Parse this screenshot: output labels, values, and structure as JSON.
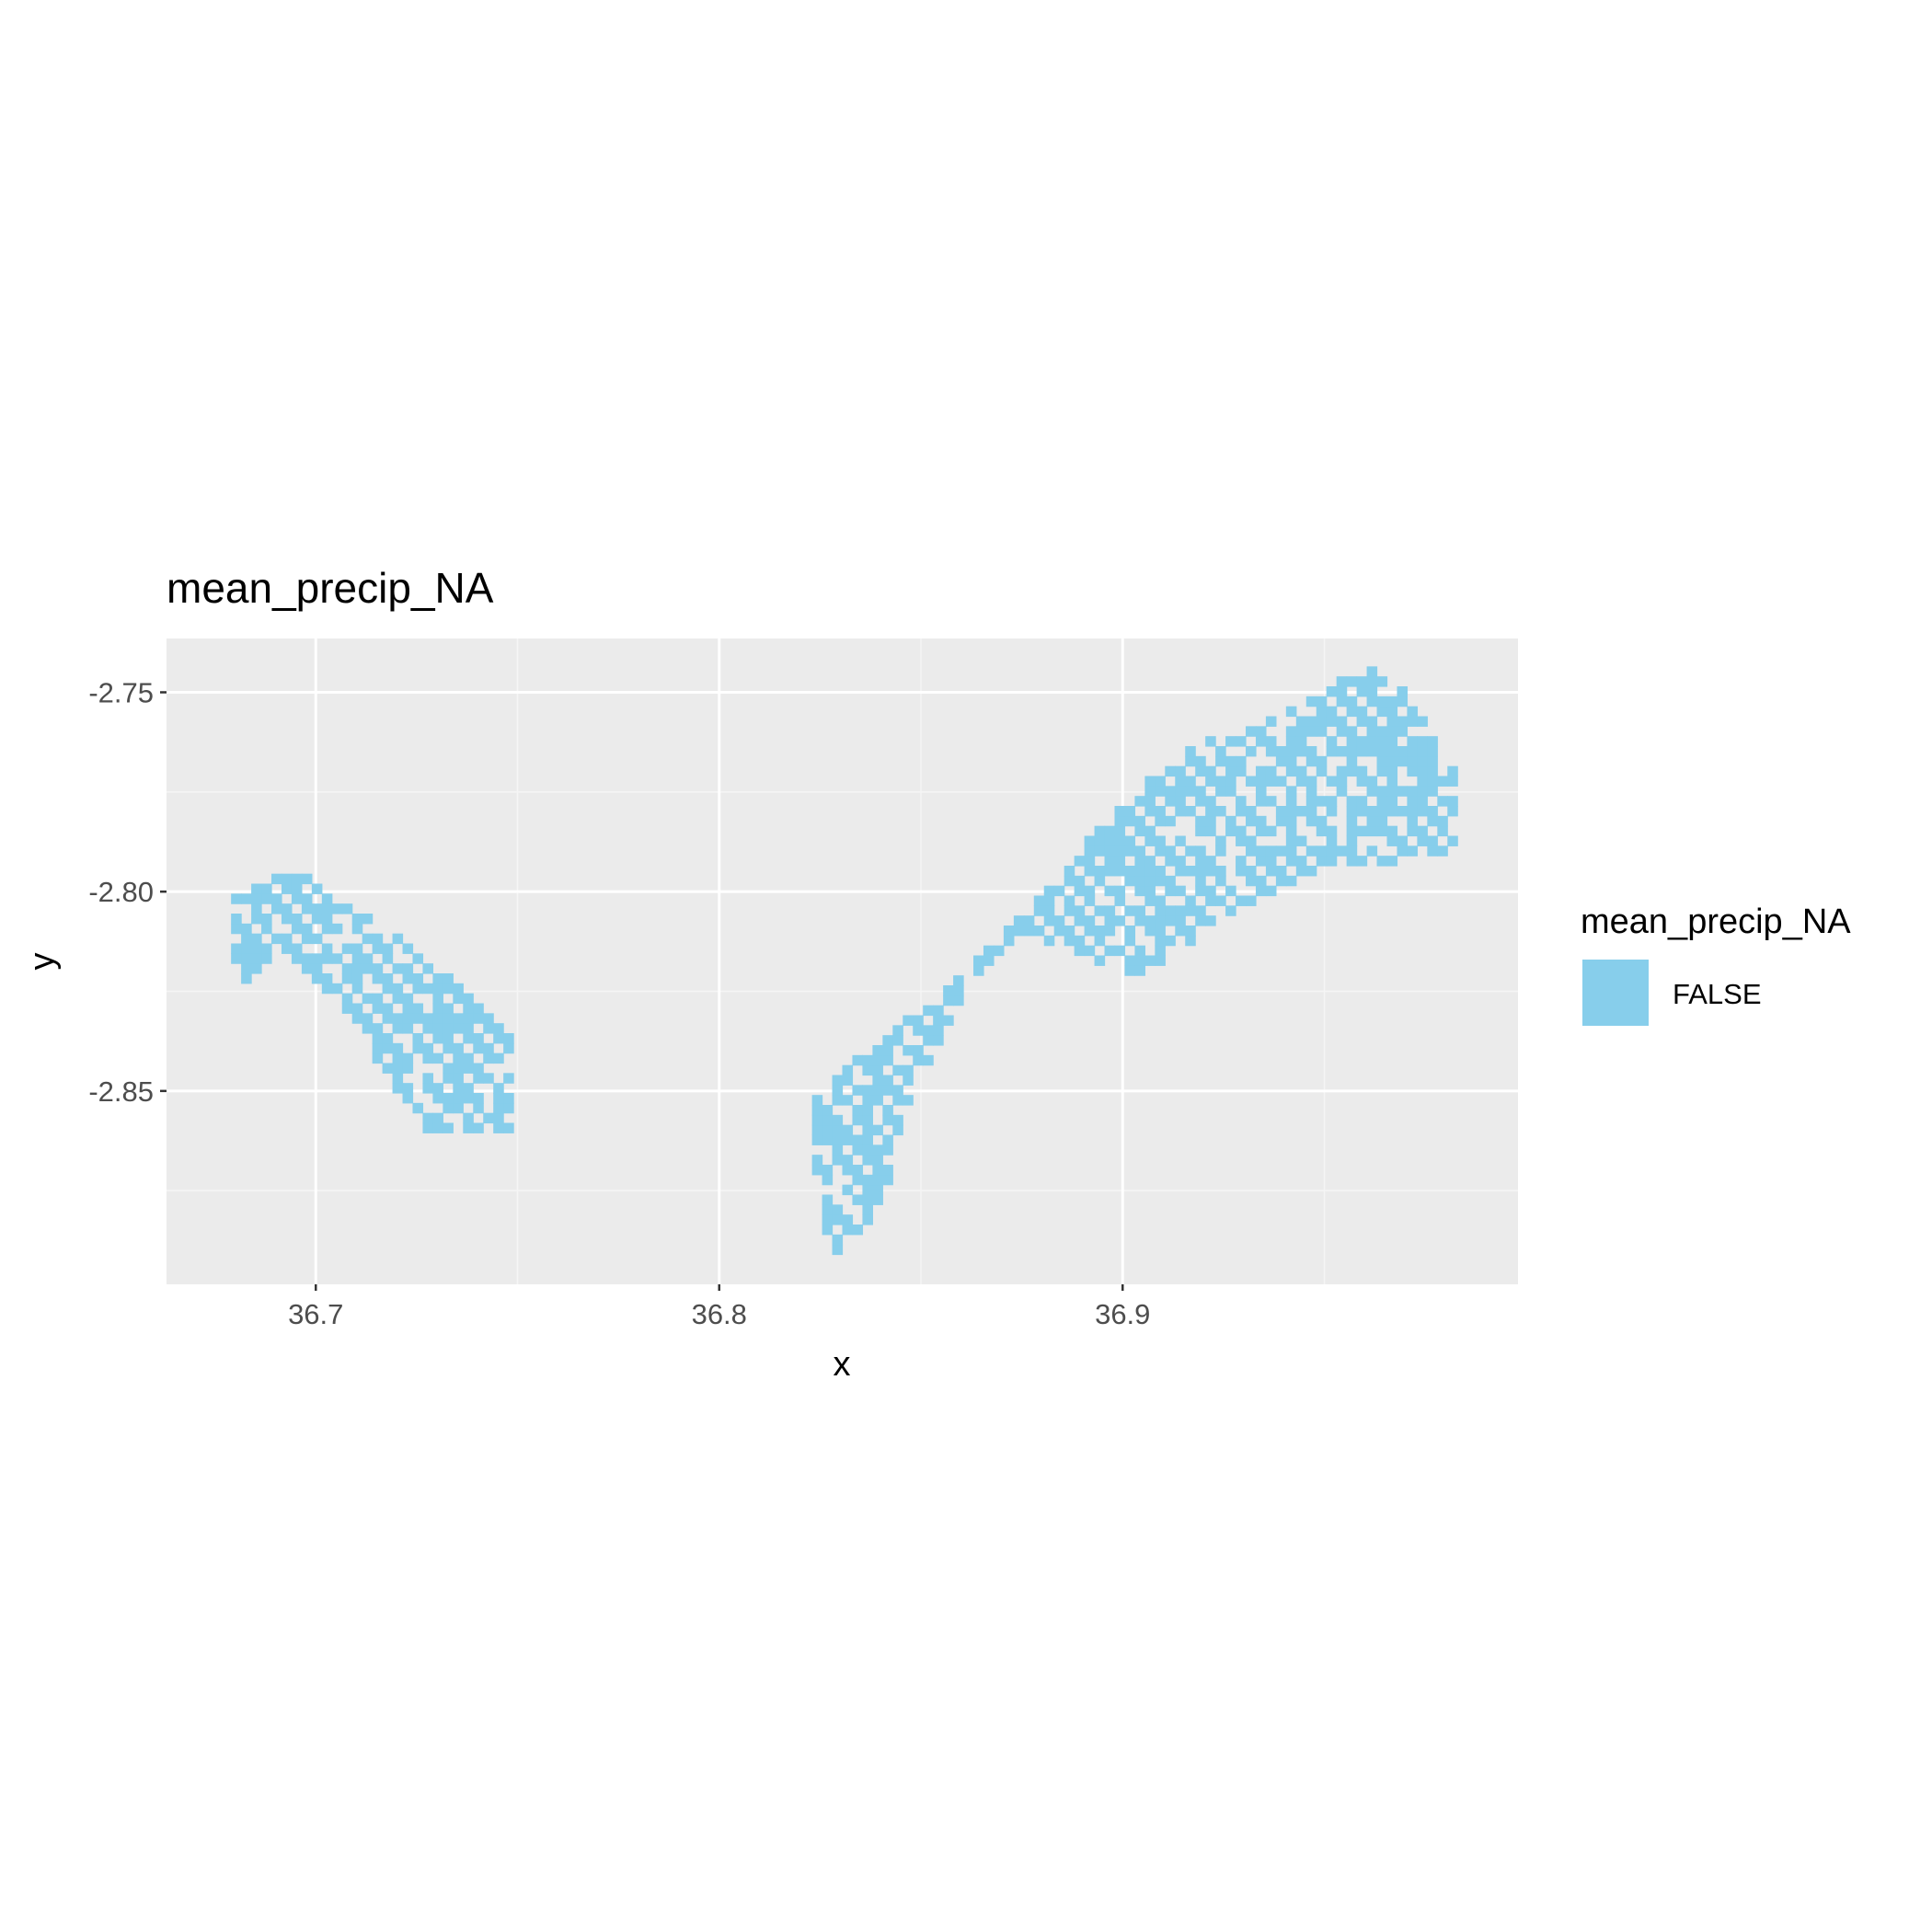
{
  "chart_data": {
    "type": "heatmap",
    "title": "mean_precip_NA",
    "xlabel": "x",
    "ylabel": "y",
    "xlim": [
      36.663,
      36.998
    ],
    "ylim": [
      -2.8985,
      -2.7365
    ],
    "x_ticks": [
      {
        "value": 36.7,
        "label": "36.7"
      },
      {
        "value": 36.8,
        "label": "36.8"
      },
      {
        "value": 36.9,
        "label": "36.9"
      }
    ],
    "y_ticks": [
      {
        "value": -2.75,
        "label": "-2.75"
      },
      {
        "value": -2.8,
        "label": "-2.80"
      },
      {
        "value": -2.85,
        "label": "-2.85"
      }
    ],
    "x_minor": [
      36.65,
      36.75,
      36.85,
      36.95
    ],
    "y_minor": [
      -2.775,
      -2.825,
      -2.875
    ],
    "grid": true,
    "cell_size": 0.0025,
    "legend": {
      "title": "mean_precip_NA",
      "position": "right",
      "entries": [
        {
          "label": "FALSE",
          "color": "#87CEEB"
        }
      ]
    },
    "colors": {
      "panel": "#EBEBEB",
      "grid_major": "#FFFFFF",
      "grid_minor": "#F5F5F5",
      "fill": "#87CEEB"
    },
    "regions": [
      {
        "name": "west",
        "x_range": [
          36.679,
          36.748
        ],
        "y_range": [
          -2.8605,
          -2.7955
        ],
        "polygon": [
          [
            36.679,
            -2.8
          ],
          [
            36.69,
            -2.7955
          ],
          [
            36.697,
            -2.7955
          ],
          [
            36.704,
            -2.801
          ],
          [
            36.722,
            -2.812
          ],
          [
            36.748,
            -2.835
          ],
          [
            36.748,
            -2.86
          ],
          [
            36.727,
            -2.86
          ],
          [
            36.705,
            -2.826
          ],
          [
            36.69,
            -2.815
          ],
          [
            36.681,
            -2.824
          ],
          [
            36.679,
            -2.815
          ]
        ]
      },
      {
        "name": "east",
        "x_range": [
          36.823,
          36.982
        ],
        "y_range": [
          -2.891,
          -2.7435
        ],
        "polygon": [
          [
            36.823,
            -2.851
          ],
          [
            36.842,
            -2.836
          ],
          [
            36.862,
            -2.819
          ],
          [
            36.89,
            -2.789
          ],
          [
            36.905,
            -2.773
          ],
          [
            36.915,
            -2.765
          ],
          [
            36.945,
            -2.752
          ],
          [
            36.96,
            -2.7435
          ],
          [
            36.97,
            -2.75
          ],
          [
            36.982,
            -2.77
          ],
          [
            36.982,
            -2.79
          ],
          [
            36.95,
            -2.795
          ],
          [
            36.925,
            -2.806
          ],
          [
            36.905,
            -2.822
          ],
          [
            36.875,
            -2.81
          ],
          [
            36.86,
            -2.826
          ],
          [
            36.845,
            -2.858
          ],
          [
            36.84,
            -2.88
          ],
          [
            36.829,
            -2.891
          ],
          [
            36.825,
            -2.884
          ]
        ]
      }
    ]
  }
}
